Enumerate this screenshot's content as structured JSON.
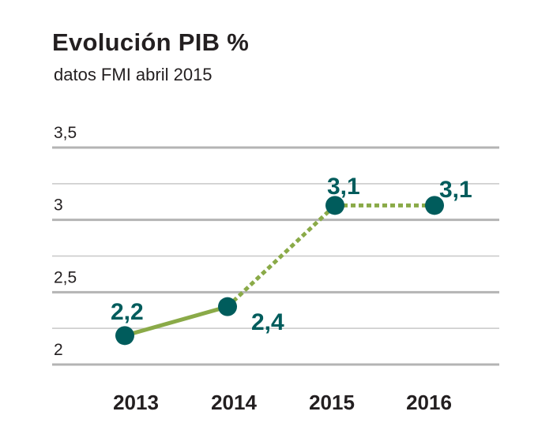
{
  "chart_data": {
    "type": "line",
    "title": "Evolución PIB %",
    "subtitle": "datos FMI abril 2015",
    "xlabel": "",
    "ylabel": "",
    "categories": [
      "2013",
      "2014",
      "2015",
      "2016"
    ],
    "values": [
      2.2,
      2.4,
      3.1,
      3.1
    ],
    "data_labels": [
      "2,2",
      "2,4",
      "3,1",
      "3,1"
    ],
    "y_ticks": [
      {
        "value": 2,
        "label": "2"
      },
      {
        "value": 2.5,
        "label": "2,5"
      },
      {
        "value": 3,
        "label": "3"
      },
      {
        "value": 3.5,
        "label": "3,5"
      }
    ],
    "ylim": [
      2,
      3.5
    ],
    "grid": true,
    "legend": "none",
    "segment_styles": [
      "solid",
      "dotted",
      "dotted"
    ],
    "colors": {
      "line": "#8aaa48",
      "marker": "#005c5c",
      "data_label": "#005c5c",
      "grid": "#c8c8c8",
      "grid_major": "#b4b4b4"
    }
  }
}
